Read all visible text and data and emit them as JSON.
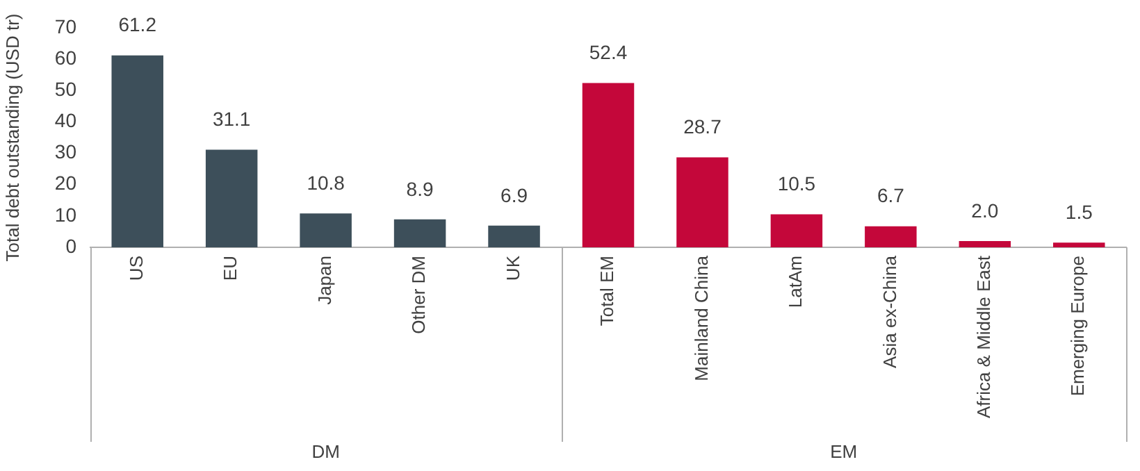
{
  "chart_data": {
    "type": "bar",
    "ylabel": "Total debt outstanding (USD tr)",
    "categories": [
      "US",
      "EU",
      "Japan",
      "Other DM",
      "UK",
      "Total EM",
      "Mainland China",
      "LatAm",
      "Asia ex-China",
      "Africa & Middle East",
      "Emerging Europe"
    ],
    "values": [
      61.2,
      31.1,
      10.8,
      8.9,
      6.9,
      52.4,
      28.7,
      10.5,
      6.7,
      2.0,
      1.5
    ],
    "value_labels": [
      "61.2",
      "31.1",
      "10.8",
      "8.9",
      "6.9",
      "52.4",
      "28.7",
      "10.5",
      "6.7",
      "2.0",
      "1.5"
    ],
    "colors": [
      "#3d4f5a",
      "#3d4f5a",
      "#3d4f5a",
      "#3d4f5a",
      "#3d4f5a",
      "#c4073a",
      "#c4073a",
      "#c4073a",
      "#c4073a",
      "#c4073a",
      "#c4073a"
    ],
    "ylim": [
      0,
      70
    ],
    "yticks": [
      0,
      10,
      20,
      30,
      40,
      50,
      60,
      70
    ],
    "annotations": [
      "DM",
      "EM"
    ],
    "grid": false,
    "legend": false
  }
}
